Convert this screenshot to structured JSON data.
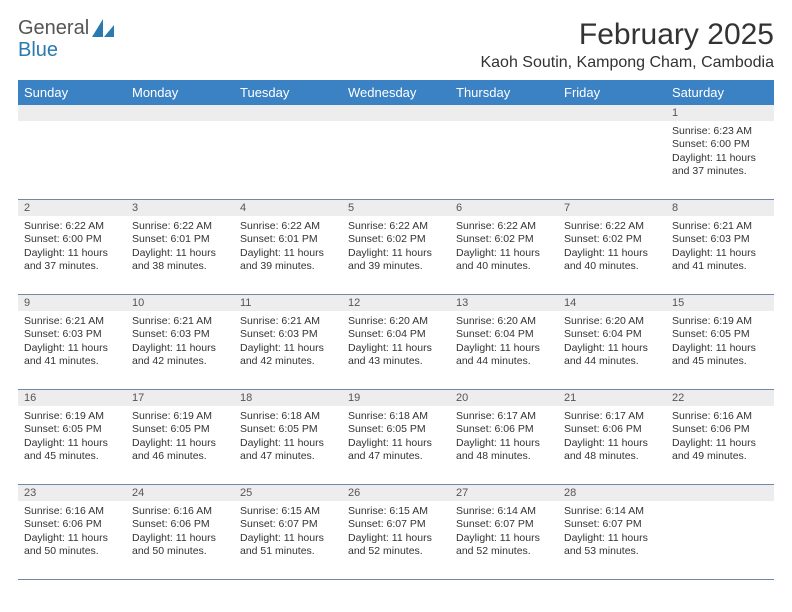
{
  "brand": {
    "word1": "General",
    "word2": "Blue"
  },
  "title": "February 2025",
  "location": "Kaoh Soutin, Kampong Cham, Cambodia",
  "day_names": [
    "Sunday",
    "Monday",
    "Tuesday",
    "Wednesday",
    "Thursday",
    "Friday",
    "Saturday"
  ],
  "colors": {
    "header_bg": "#3a82c4",
    "header_fg": "#ffffff",
    "band_bg": "#ededed",
    "rule": "#6f89a6",
    "brand_blue": "#2a7ab0"
  },
  "weeks": [
    [
      null,
      null,
      null,
      null,
      null,
      null,
      {
        "n": "1",
        "sunrise": "6:23 AM",
        "sunset": "6:00 PM",
        "daylight": "11 hours and 37 minutes."
      }
    ],
    [
      {
        "n": "2",
        "sunrise": "6:22 AM",
        "sunset": "6:00 PM",
        "daylight": "11 hours and 37 minutes."
      },
      {
        "n": "3",
        "sunrise": "6:22 AM",
        "sunset": "6:01 PM",
        "daylight": "11 hours and 38 minutes."
      },
      {
        "n": "4",
        "sunrise": "6:22 AM",
        "sunset": "6:01 PM",
        "daylight": "11 hours and 39 minutes."
      },
      {
        "n": "5",
        "sunrise": "6:22 AM",
        "sunset": "6:02 PM",
        "daylight": "11 hours and 39 minutes."
      },
      {
        "n": "6",
        "sunrise": "6:22 AM",
        "sunset": "6:02 PM",
        "daylight": "11 hours and 40 minutes."
      },
      {
        "n": "7",
        "sunrise": "6:22 AM",
        "sunset": "6:02 PM",
        "daylight": "11 hours and 40 minutes."
      },
      {
        "n": "8",
        "sunrise": "6:21 AM",
        "sunset": "6:03 PM",
        "daylight": "11 hours and 41 minutes."
      }
    ],
    [
      {
        "n": "9",
        "sunrise": "6:21 AM",
        "sunset": "6:03 PM",
        "daylight": "11 hours and 41 minutes."
      },
      {
        "n": "10",
        "sunrise": "6:21 AM",
        "sunset": "6:03 PM",
        "daylight": "11 hours and 42 minutes."
      },
      {
        "n": "11",
        "sunrise": "6:21 AM",
        "sunset": "6:03 PM",
        "daylight": "11 hours and 42 minutes."
      },
      {
        "n": "12",
        "sunrise": "6:20 AM",
        "sunset": "6:04 PM",
        "daylight": "11 hours and 43 minutes."
      },
      {
        "n": "13",
        "sunrise": "6:20 AM",
        "sunset": "6:04 PM",
        "daylight": "11 hours and 44 minutes."
      },
      {
        "n": "14",
        "sunrise": "6:20 AM",
        "sunset": "6:04 PM",
        "daylight": "11 hours and 44 minutes."
      },
      {
        "n": "15",
        "sunrise": "6:19 AM",
        "sunset": "6:05 PM",
        "daylight": "11 hours and 45 minutes."
      }
    ],
    [
      {
        "n": "16",
        "sunrise": "6:19 AM",
        "sunset": "6:05 PM",
        "daylight": "11 hours and 45 minutes."
      },
      {
        "n": "17",
        "sunrise": "6:19 AM",
        "sunset": "6:05 PM",
        "daylight": "11 hours and 46 minutes."
      },
      {
        "n": "18",
        "sunrise": "6:18 AM",
        "sunset": "6:05 PM",
        "daylight": "11 hours and 47 minutes."
      },
      {
        "n": "19",
        "sunrise": "6:18 AM",
        "sunset": "6:05 PM",
        "daylight": "11 hours and 47 minutes."
      },
      {
        "n": "20",
        "sunrise": "6:17 AM",
        "sunset": "6:06 PM",
        "daylight": "11 hours and 48 minutes."
      },
      {
        "n": "21",
        "sunrise": "6:17 AM",
        "sunset": "6:06 PM",
        "daylight": "11 hours and 48 minutes."
      },
      {
        "n": "22",
        "sunrise": "6:16 AM",
        "sunset": "6:06 PM",
        "daylight": "11 hours and 49 minutes."
      }
    ],
    [
      {
        "n": "23",
        "sunrise": "6:16 AM",
        "sunset": "6:06 PM",
        "daylight": "11 hours and 50 minutes."
      },
      {
        "n": "24",
        "sunrise": "6:16 AM",
        "sunset": "6:06 PM",
        "daylight": "11 hours and 50 minutes."
      },
      {
        "n": "25",
        "sunrise": "6:15 AM",
        "sunset": "6:07 PM",
        "daylight": "11 hours and 51 minutes."
      },
      {
        "n": "26",
        "sunrise": "6:15 AM",
        "sunset": "6:07 PM",
        "daylight": "11 hours and 52 minutes."
      },
      {
        "n": "27",
        "sunrise": "6:14 AM",
        "sunset": "6:07 PM",
        "daylight": "11 hours and 52 minutes."
      },
      {
        "n": "28",
        "sunrise": "6:14 AM",
        "sunset": "6:07 PM",
        "daylight": "11 hours and 53 minutes."
      },
      null
    ]
  ],
  "labels": {
    "sunrise": "Sunrise:",
    "sunset": "Sunset:",
    "daylight": "Daylight:"
  }
}
